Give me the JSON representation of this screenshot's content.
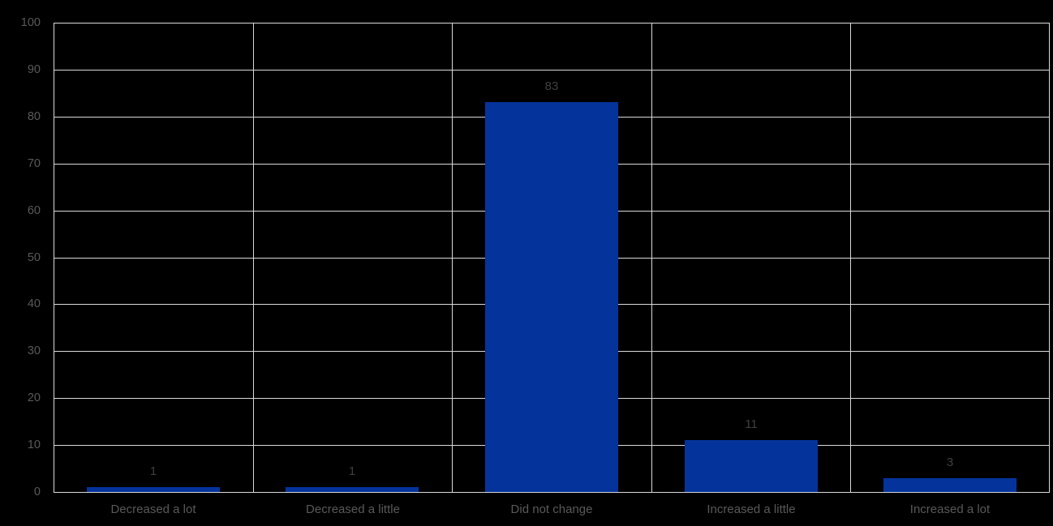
{
  "chart_data": {
    "type": "bar",
    "title": "",
    "xlabel": "",
    "ylabel": "",
    "categories": [
      "Decreased a lot",
      "Decreased a little",
      "Did not change",
      "Increased a little",
      "Increased a lot"
    ],
    "values": [
      1,
      1,
      83,
      11,
      3
    ],
    "data_labels": [
      "1",
      "1",
      "83",
      "11",
      "3"
    ],
    "ylim": [
      0,
      100
    ],
    "yticks": [
      0,
      10,
      20,
      30,
      40,
      50,
      60,
      70,
      80,
      90,
      100
    ],
    "grid": true,
    "legend_position": "none",
    "colors": {
      "background": "#000000",
      "bar": "#04339B",
      "gridline": "#D9D9D9",
      "axis_label": "#595959",
      "data_label": "#404040"
    }
  }
}
